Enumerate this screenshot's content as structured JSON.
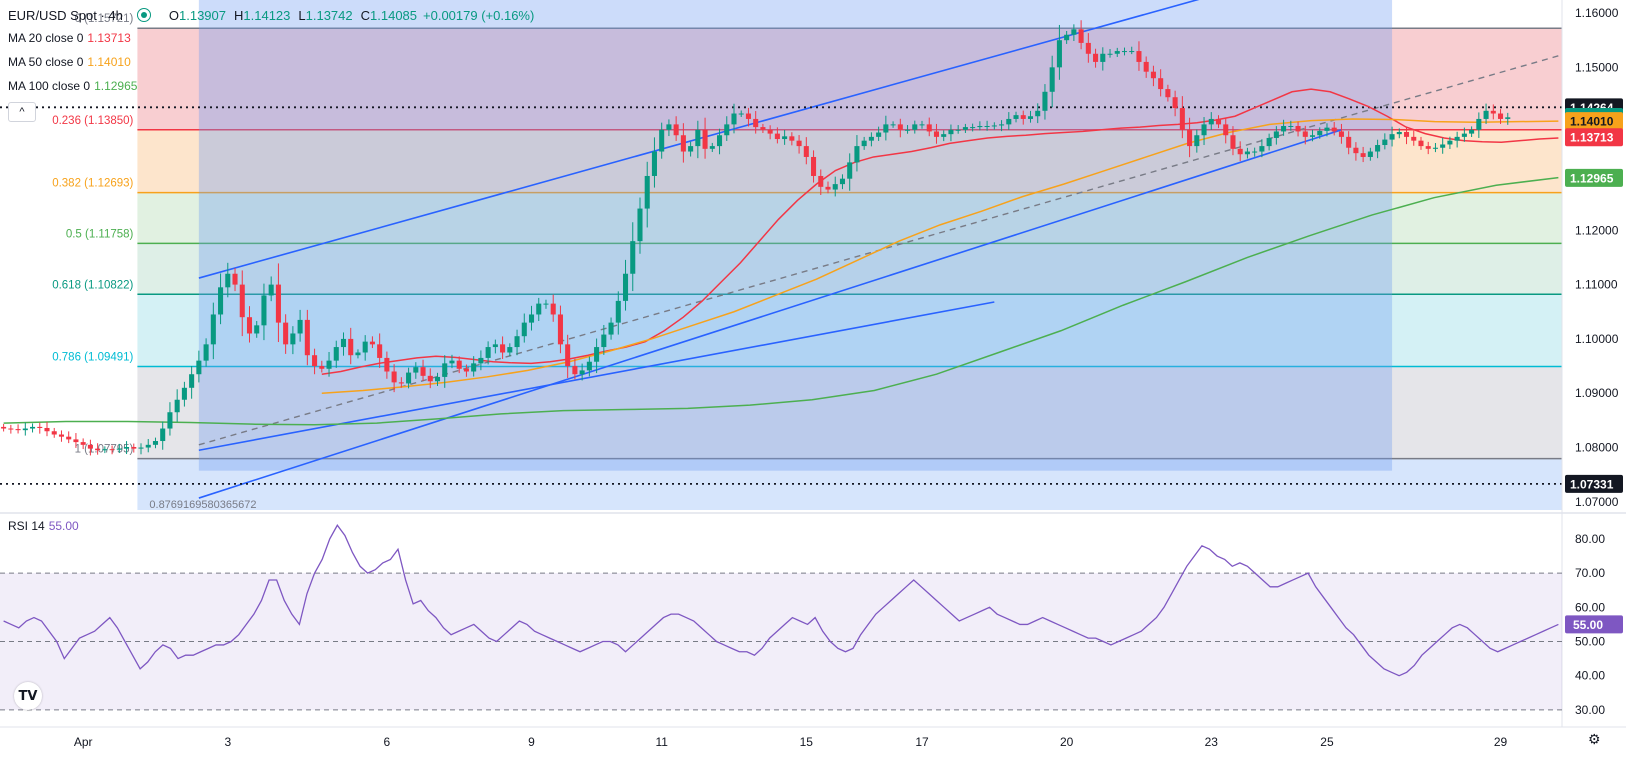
{
  "header": {
    "symbol": "EUR/USD Spot · 4h",
    "open_label": "O",
    "open": "1.13907",
    "high_label": "H",
    "high": "1.14123",
    "low_label": "L",
    "low": "1.13742",
    "close_label": "C",
    "close": "1.14085",
    "change": "+0.00179 (+0.16%)"
  },
  "indicators": {
    "ma20": {
      "label": "MA 20 close 0",
      "value": "1.13713",
      "color": "#f23645"
    },
    "ma50": {
      "label": "MA 50 close 0",
      "value": "1.14010",
      "color": "#f7a21b"
    },
    "ma100": {
      "label": "MA 100 close 0",
      "value": "1.12965",
      "color": "#4caf50"
    }
  },
  "collapse_glyph": "^",
  "rsi": {
    "label": "RSI 14",
    "value": "55.00",
    "color": "#7e57c2"
  },
  "logo_text": "TV",
  "settings_glyph": "⚙",
  "chart_data": [
    {
      "type": "candlestick",
      "symbol": "EUR/USD Spot",
      "timeframe": "4h",
      "x_labels": [
        "Apr",
        "3",
        "6",
        "9",
        "11",
        "15",
        "17",
        "20",
        "23",
        "25",
        "29"
      ],
      "x_label_index": [
        11,
        31,
        53,
        73,
        91,
        111,
        127,
        147,
        167,
        183,
        207
      ],
      "bar_count": 216,
      "y_ticks": [
        1.07,
        1.08,
        1.09,
        1.1,
        1.11,
        1.12,
        1.13,
        1.14,
        1.15,
        1.16
      ],
      "ylim": [
        1.0685,
        1.1624
      ],
      "series_close": [
        1.0835,
        1.0834,
        1.0832,
        1.0835,
        1.0838,
        1.0836,
        1.083,
        1.0824,
        1.082,
        1.0815,
        1.081,
        1.0805,
        1.0798,
        1.0795,
        1.0797,
        1.0796,
        1.0798,
        1.0801,
        1.0798,
        1.08,
        1.0805,
        1.0812,
        1.0835,
        1.0865,
        1.0888,
        1.091,
        1.0935,
        1.096,
        1.099,
        1.1045,
        1.1095,
        1.112,
        1.11,
        1.104,
        1.101,
        1.1025,
        1.108,
        1.11,
        1.103,
        1.099,
        1.101,
        1.1035,
        1.097,
        1.095,
        1.0945,
        1.096,
        1.0985,
        1.1,
        1.097,
        1.0975,
        1.0995,
        1.099,
        1.0965,
        1.094,
        1.092,
        1.0918,
        1.0938,
        1.0948,
        1.0932,
        1.0922,
        1.093,
        1.0955,
        1.096,
        1.0945,
        1.094,
        1.0955,
        1.0965,
        1.0985,
        1.099,
        1.0975,
        1.0985,
        1.1005,
        1.103,
        1.1045,
        1.1065,
        1.1065,
        1.1045,
        1.099,
        1.095,
        1.0935,
        1.0942,
        1.0958,
        1.0985,
        1.1008,
        1.103,
        1.107,
        1.112,
        1.118,
        1.124,
        1.13,
        1.1345,
        1.1385,
        1.1395,
        1.1375,
        1.1345,
        1.1355,
        1.1385,
        1.135,
        1.1355,
        1.1375,
        1.1395,
        1.1415,
        1.1415,
        1.1405,
        1.139,
        1.1385,
        1.1378,
        1.1368,
        1.1373,
        1.1365,
        1.1355,
        1.1335,
        1.13,
        1.128,
        1.1275,
        1.1285,
        1.1295,
        1.1325,
        1.1355,
        1.1365,
        1.1372,
        1.138,
        1.1395,
        1.1395,
        1.1385,
        1.1385,
        1.1395,
        1.1395,
        1.1382,
        1.1372,
        1.1377,
        1.1385,
        1.1385,
        1.139,
        1.139,
        1.1392,
        1.1392,
        1.1393,
        1.1395,
        1.1405,
        1.1412,
        1.1405,
        1.141,
        1.142,
        1.1455,
        1.15,
        1.155,
        1.156,
        1.157,
        1.1545,
        1.1525,
        1.151,
        1.1525,
        1.1525,
        1.153,
        1.153,
        1.153,
        1.151,
        1.1492,
        1.148,
        1.146,
        1.1445,
        1.1425,
        1.1385,
        1.1355,
        1.1375,
        1.1395,
        1.1405,
        1.1395,
        1.1375,
        1.135,
        1.134,
        1.1345,
        1.1345,
        1.1355,
        1.137,
        1.1382,
        1.1392,
        1.1392,
        1.1382,
        1.1372,
        1.1375,
        1.1383,
        1.1389,
        1.1382,
        1.1372,
        1.1352,
        1.1342,
        1.1335,
        1.1345,
        1.1357,
        1.1367,
        1.1377,
        1.1381,
        1.1372,
        1.1365,
        1.1355,
        1.135,
        1.1352,
        1.1358,
        1.1365,
        1.1372,
        1.1378,
        1.1385,
        1.1405,
        1.142,
        1.1415,
        1.1405,
        1.1408
      ],
      "open_first": 1.0838,
      "moving_averages": [
        {
          "name": "MA 20",
          "from_index": 44,
          "values": [
            1.0935,
            1.094,
            1.0948,
            1.0955,
            1.096,
            1.0965,
            1.0968,
            1.0966,
            1.0962,
            1.0958,
            1.0956,
            1.0955,
            1.0958,
            1.0963,
            1.097,
            1.0978,
            1.0985,
            1.0995,
            1.1015,
            1.104,
            1.107,
            1.1105,
            1.114,
            1.118,
            1.122,
            1.1255,
            1.1285,
            1.131,
            1.1325,
            1.1335,
            1.134,
            1.1345,
            1.1352,
            1.136,
            1.1365,
            1.137,
            1.1373,
            1.1375,
            1.1378,
            1.138,
            1.1382,
            1.1385,
            1.1388,
            1.139,
            1.1393,
            1.1395,
            1.1398,
            1.1403,
            1.141,
            1.1425,
            1.144,
            1.1455,
            1.146,
            1.1455,
            1.1442,
            1.1428,
            1.141,
            1.139,
            1.1378,
            1.137,
            1.1365,
            1.1363,
            1.1362,
            1.1365,
            1.1368,
            1.137
          ]
        },
        {
          "name": "MA 50",
          "from_index": 44,
          "values": [
            1.09,
            1.0905,
            1.0912,
            1.092,
            1.093,
            1.0942,
            1.0958,
            1.0978,
            1.1,
            1.1025,
            1.105,
            1.108,
            1.111,
            1.1145,
            1.118,
            1.121,
            1.1235,
            1.1262,
            1.1285,
            1.131,
            1.1335,
            1.136,
            1.138,
            1.1395,
            1.1402,
            1.1405,
            1.1404,
            1.14,
            1.1399,
            1.14,
            1.1401
          ]
        },
        {
          "name": "MA 100",
          "from_index": 0,
          "values": [
            1.0845,
            1.0848,
            1.0848,
            1.0846,
            1.0843,
            1.0842,
            1.0845,
            1.0853,
            1.0862,
            1.0868,
            1.087,
            1.0872,
            1.0878,
            1.0888,
            1.0905,
            1.0935,
            1.0975,
            1.1015,
            1.1062,
            1.1105,
            1.115,
            1.119,
            1.1228,
            1.126,
            1.1283,
            1.1297
          ]
        }
      ],
      "price_tags": [
        {
          "price": 1.14264,
          "label": "1.14264",
          "style": "dotted-line",
          "bg": "#131722"
        },
        {
          "price": 1.14085,
          "label": "1.14085",
          "bg": "#089981"
        },
        {
          "price": 1.1401,
          "label": "1.14010",
          "bg": "#f7a21b"
        },
        {
          "price": 1.13713,
          "label": "1.13713",
          "bg": "#f23645"
        },
        {
          "price": 1.12965,
          "label": "1.12965",
          "bg": "#4caf50"
        },
        {
          "price": 1.07331,
          "label": "1.07331",
          "style": "dotted-line",
          "bg": "#131722"
        }
      ],
      "fibonacci": {
        "from_index": 19,
        "levels": [
          {
            "ratio_label": "0",
            "value_label": "(1.15721)",
            "price": 1.15721,
            "color": "#787b86",
            "fill": "#f7c6c9"
          },
          {
            "ratio_label": "0.236",
            "value_label": "(1.13850)",
            "price": 1.1385,
            "color": "#f23645",
            "fill": "#fde0c3"
          },
          {
            "ratio_label": "0.382",
            "value_label": "(1.12693)",
            "price": 1.12693,
            "color": "#f7a21b",
            "fill": "#dcefdc"
          },
          {
            "ratio_label": "0.5",
            "value_label": "(1.11758)",
            "price": 1.11758,
            "color": "#4caf50",
            "fill": "#d8ece3"
          },
          {
            "ratio_label": "0.618",
            "value_label": "(1.10822)",
            "price": 1.10822,
            "color": "#089981",
            "fill": "#cdeef3"
          },
          {
            "ratio_label": "0.786",
            "value_label": "(1.09491)",
            "price": 1.09491,
            "color": "#00bcd4",
            "fill": "#e0e1e5"
          },
          {
            "ratio_label": "1",
            "value_label": "(1.07795)",
            "price": 1.07795,
            "color": "#787b86",
            "fill": "#cfe0fb"
          }
        ],
        "bottom_label": "0.8769169580365672"
      },
      "channel": {
        "upper": [
          [
            27,
            1.1112
          ],
          [
            176,
            1.1665
          ]
        ],
        "lower": [
          [
            27,
            1.0707
          ],
          [
            185,
            1.1385
          ]
        ],
        "mid": [
          [
            27,
            1.0805
          ],
          [
            216,
            1.1525
          ]
        ],
        "extra_line": [
          [
            27,
            1.0795
          ],
          [
            137,
            1.1068
          ]
        ],
        "box_from": 27,
        "box_to": 192
      },
      "rsi": {
        "ylim": [
          25,
          87
        ],
        "y_ticks": [
          30,
          40,
          50,
          60,
          70,
          80
        ],
        "y_tick_labels": [
          "30.00",
          "40.00",
          "50.00",
          "60.00",
          "70.00",
          "80.00"
        ],
        "band": [
          30,
          70
        ],
        "mid": 50,
        "values": [
          56,
          55,
          54,
          56,
          57,
          56,
          53,
          50,
          45,
          48,
          51,
          52,
          53,
          55,
          57,
          54,
          50,
          46,
          42,
          44,
          47,
          49,
          48,
          45,
          46,
          46,
          47,
          48,
          49,
          49,
          50,
          52,
          55,
          58,
          62,
          68,
          68,
          62,
          58,
          55,
          64,
          70,
          74,
          80,
          84,
          81,
          76,
          72,
          70,
          71,
          73,
          74,
          77,
          68,
          61,
          62,
          59,
          57,
          54,
          52,
          53,
          54,
          55,
          53,
          51,
          50,
          52,
          54,
          56,
          55,
          53,
          52,
          51,
          50,
          49,
          48,
          47,
          48,
          49,
          50,
          50,
          49,
          47,
          49,
          51,
          53,
          55,
          57,
          58,
          58,
          57,
          56,
          54,
          52,
          50,
          49,
          48,
          47,
          47,
          46,
          48,
          51,
          53,
          55,
          57,
          56,
          55,
          57,
          53,
          50,
          48,
          47,
          48,
          52,
          55,
          58,
          60,
          62,
          64,
          66,
          68,
          66,
          64,
          62,
          60,
          58,
          56,
          57,
          58,
          59,
          60,
          58,
          57,
          56,
          55,
          55,
          56,
          57,
          56,
          55,
          54,
          53,
          52,
          51,
          51,
          50,
          49,
          50,
          51,
          52,
          53,
          55,
          57,
          60,
          64,
          68,
          72,
          75,
          78,
          77,
          75,
          74,
          72,
          73,
          72,
          70,
          68,
          66,
          66,
          67,
          68,
          69,
          70,
          66,
          63,
          60,
          57,
          54,
          52,
          49,
          46,
          44,
          42,
          41,
          40,
          41,
          43,
          46,
          48,
          50,
          52,
          54,
          55,
          54,
          52,
          50,
          48,
          47,
          48,
          49,
          50,
          51,
          52,
          53,
          54,
          55
        ]
      }
    }
  ]
}
